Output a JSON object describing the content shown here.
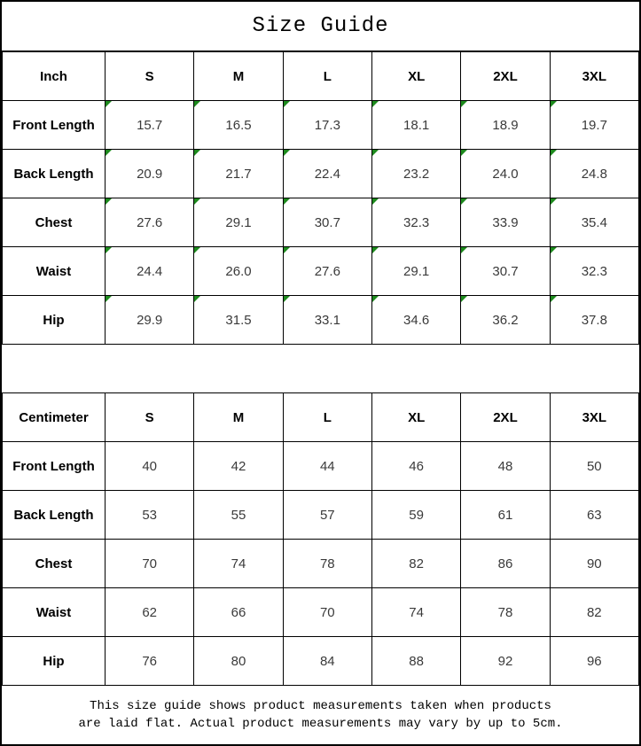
{
  "title": "Size Guide",
  "colors": {
    "marker_green": "#1d8a1d",
    "border_black": "#000000",
    "value_text": "#3a3a3a"
  },
  "chart_data": [
    {
      "type": "table",
      "unit": "Inch",
      "corner_markers": true,
      "columns": [
        "Inch",
        "S",
        "M",
        "L",
        "XL",
        "2XL",
        "3XL"
      ],
      "rows": [
        [
          "Front Length",
          "15.7",
          "16.5",
          "17.3",
          "18.1",
          "18.9",
          "19.7"
        ],
        [
          "Back Length",
          "20.9",
          "21.7",
          "22.4",
          "23.2",
          "24.0",
          "24.8"
        ],
        [
          "Chest",
          "27.6",
          "29.1",
          "30.7",
          "32.3",
          "33.9",
          "35.4"
        ],
        [
          "Waist",
          "24.4",
          "26.0",
          "27.6",
          "29.1",
          "30.7",
          "32.3"
        ],
        [
          "Hip",
          "29.9",
          "31.5",
          "33.1",
          "34.6",
          "36.2",
          "37.8"
        ]
      ]
    },
    {
      "type": "table",
      "unit": "Centimeter",
      "corner_markers": false,
      "columns": [
        "Centimeter",
        "S",
        "M",
        "L",
        "XL",
        "2XL",
        "3XL"
      ],
      "rows": [
        [
          "Front Length",
          "40",
          "42",
          "44",
          "46",
          "48",
          "50"
        ],
        [
          "Back Length",
          "53",
          "55",
          "57",
          "59",
          "61",
          "63"
        ],
        [
          "Chest",
          "70",
          "74",
          "78",
          "82",
          "86",
          "90"
        ],
        [
          "Waist",
          "62",
          "66",
          "70",
          "74",
          "78",
          "82"
        ],
        [
          "Hip",
          "76",
          "80",
          "84",
          "88",
          "92",
          "96"
        ]
      ]
    }
  ],
  "footer": {
    "line1": "This size guide shows product measurements taken when products",
    "line2": "are laid flat. Actual product measurements may vary by up to 5cm."
  }
}
